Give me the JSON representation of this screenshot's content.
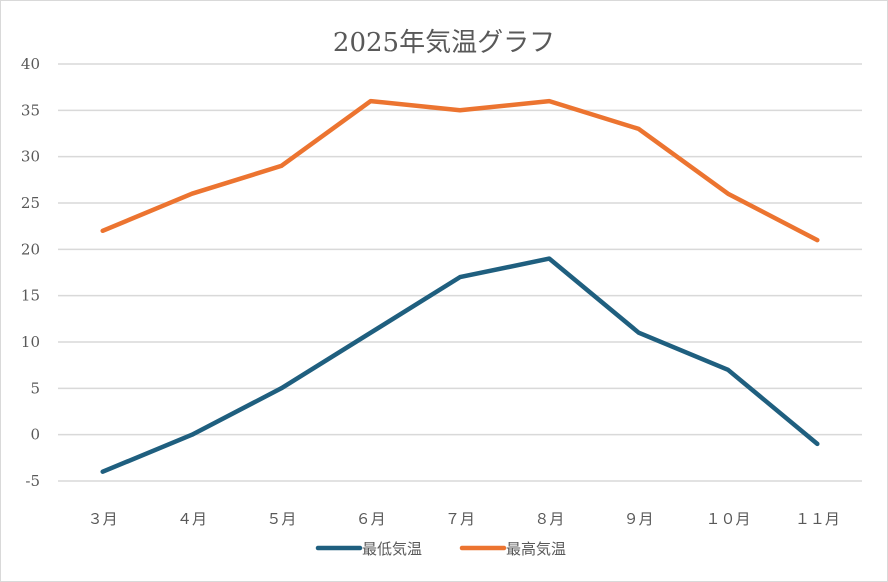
{
  "chart_data": {
    "type": "line",
    "title": "2025年気温グラフ",
    "xlabel": "",
    "ylabel": "",
    "categories": [
      "３月",
      "４月",
      "５月",
      "６月",
      "７月",
      "８月",
      "９月",
      "１０月",
      "１１月"
    ],
    "series": [
      {
        "name": "最低気温",
        "color": "#1f5f7f",
        "values": [
          -4,
          0,
          5,
          11,
          17,
          19,
          11,
          7,
          -1
        ]
      },
      {
        "name": "最高気温",
        "color": "#ec7430",
        "values": [
          22,
          26,
          29,
          36,
          35,
          36,
          33,
          26,
          21
        ]
      }
    ],
    "ylim": [
      -5,
      40
    ],
    "yticks": [
      40,
      35,
      30,
      25,
      20,
      15,
      10,
      5,
      0,
      -5
    ],
    "ytick_labels": [
      "40",
      "35",
      "30",
      "25",
      "20",
      "15",
      "10",
      "5",
      "0",
      "-5"
    ],
    "grid": true,
    "gridline_color": "#d9d9d9",
    "legend": "bottom"
  }
}
